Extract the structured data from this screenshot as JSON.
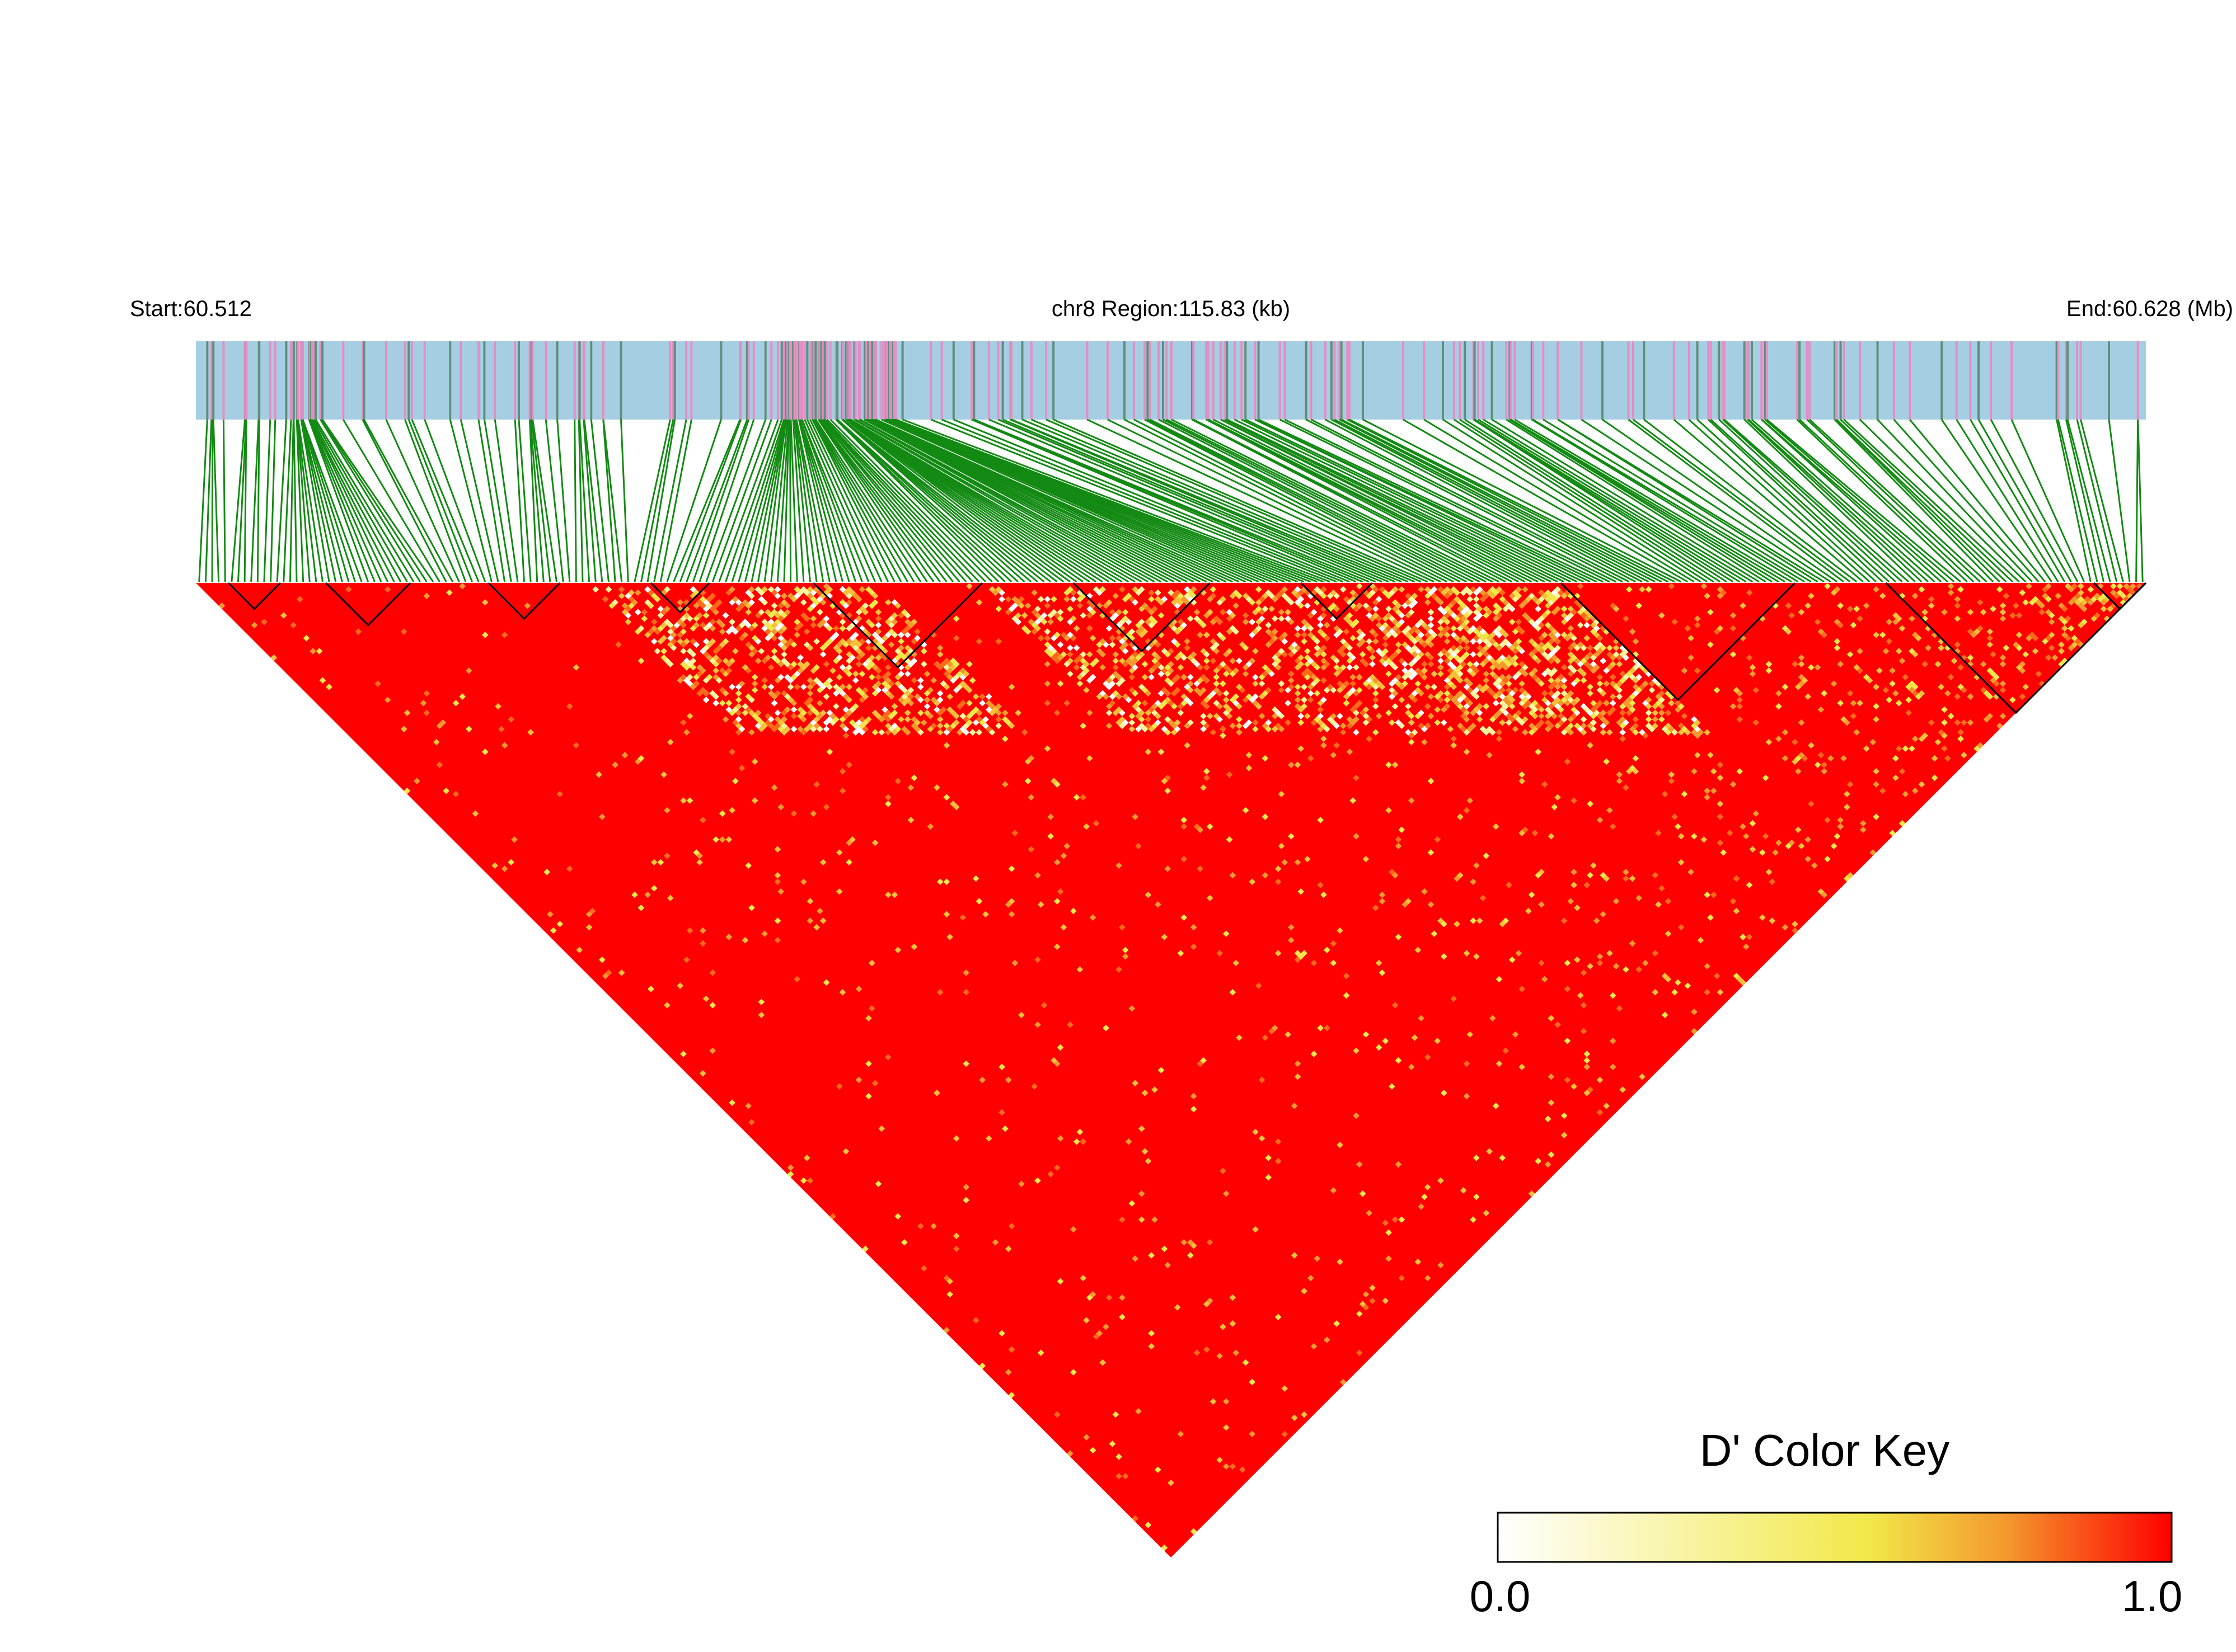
{
  "header": {
    "start_label": "Start:60.512",
    "region_label": "chr8 Region:115.83 (kb)",
    "end_label": "End:60.628 (Mb)"
  },
  "chart_data": {
    "type": "heatmap",
    "title": "",
    "region": {
      "chromosome": "chr8",
      "start_mb": 60.512,
      "end_mb": 60.628,
      "length_kb": 115.83
    },
    "snp_track": {
      "background_color": "#a6cee3",
      "snp_colors": [
        "#e48ec6",
        "#5f8f7a"
      ]
    },
    "connector_color": "#138a13",
    "haplotype_block_color": "#000000",
    "color_key": {
      "title": "D' Color Key",
      "min": 0.0,
      "max": 1.0,
      "min_label": "0.0",
      "max_label": "1.0",
      "colors": [
        "#ffffff",
        "#f2e84a",
        "#f39a2e",
        "#ff0000"
      ]
    },
    "dominant_value": 1.0
  }
}
